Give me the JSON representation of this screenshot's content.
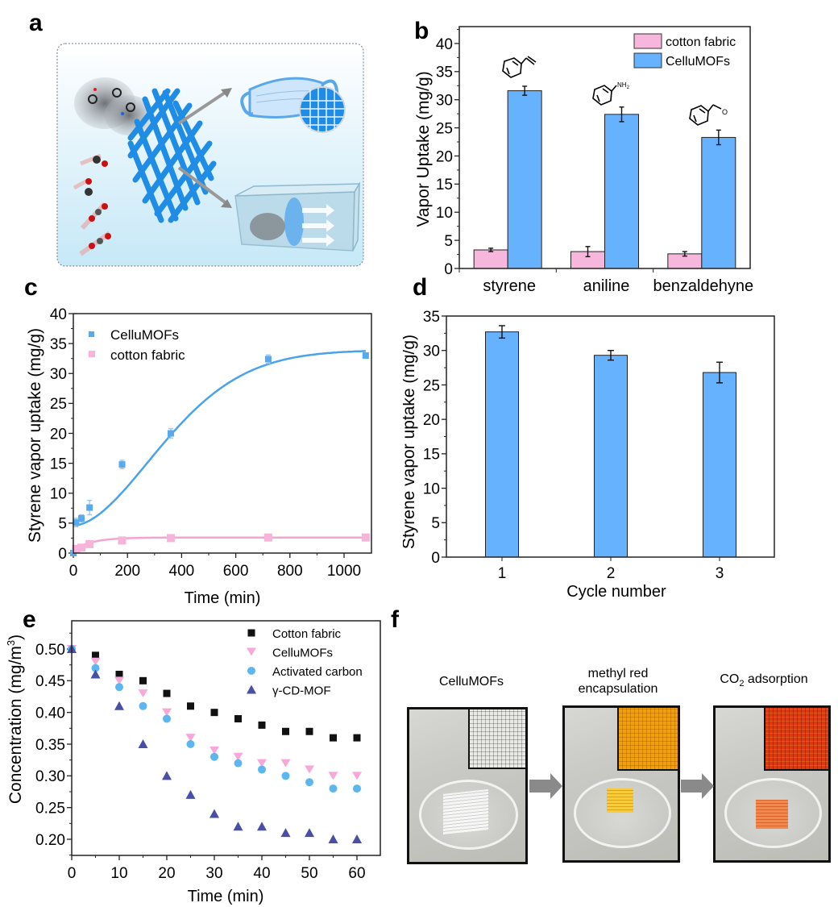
{
  "panels": {
    "a": {
      "letter": "a",
      "description": "schematic: CelluMOFs woven fabric capturing VOC and CO2 molecules, applied to face mask and air filtration box"
    },
    "b": {
      "letter": "b"
    },
    "c": {
      "letter": "c"
    },
    "d": {
      "letter": "d"
    },
    "e": {
      "letter": "e"
    },
    "f": {
      "letter": "f",
      "photos": [
        {
          "label_line1": "CelluMOFs",
          "label_line2": "",
          "color": "#f2f2f2"
        },
        {
          "label_line1": "methyl red",
          "label_line2": "encapsulation",
          "color": "#f2c230"
        },
        {
          "label_line1": "CO",
          "label_sub": "2",
          "label_rest": " adsorption",
          "color": "#e7783a"
        }
      ]
    }
  },
  "colors": {
    "pink": "#f7b6dc",
    "blue": "#66b2ff",
    "pink_line": "#f5a3d0",
    "blue_line": "#4aa3ea",
    "black": "#111111",
    "lavender_pink": "#f7a8d8",
    "light_blue": "#5db6f0",
    "indigo": "#4a4fa6"
  },
  "chart_data": [
    {
      "id": "b",
      "type": "bar",
      "title": "",
      "xlabel": "",
      "ylabel": "Vapor Uptake (mg/g)",
      "ylim": [
        0,
        43
      ],
      "yticks": [
        0,
        5,
        10,
        15,
        20,
        25,
        30,
        35,
        40
      ],
      "categories": [
        "styrene",
        "aniline",
        "benzaldehyne"
      ],
      "series": [
        {
          "name": "cotton fabric",
          "values": [
            3.3,
            3.0,
            2.6
          ],
          "errors": [
            0.3,
            0.9,
            0.4
          ]
        },
        {
          "name": "CelluMOFs",
          "values": [
            31.6,
            27.4,
            23.3
          ],
          "errors": [
            0.8,
            1.3,
            1.3
          ]
        }
      ],
      "legend": "top-right",
      "annotations": [
        "styrene structure",
        "aniline structure (NH2)",
        "benzaldehyde structure (O)"
      ],
      "annotation_text": {
        "nh2": "NH",
        "nh2_sub": "2",
        "o": "O"
      }
    },
    {
      "id": "c",
      "type": "scatter",
      "title": "",
      "xlabel": "Time (min)",
      "ylabel": "Styrene vapor uptake (mg/g)",
      "xlim": [
        0,
        1080
      ],
      "ylim": [
        0,
        40
      ],
      "xticks": [
        0,
        200,
        400,
        600,
        800,
        1000
      ],
      "yticks": [
        0,
        5,
        10,
        15,
        20,
        25,
        30,
        35,
        40
      ],
      "series": [
        {
          "name": "CelluMOFs",
          "x": [
            0,
            10,
            30,
            60,
            180,
            360,
            720,
            1080
          ],
          "y": [
            0,
            5.1,
            5.8,
            7.6,
            14.8,
            20.0,
            32.4,
            33.0
          ],
          "errors": [
            0,
            0.7,
            0.6,
            1.2,
            0.7,
            0.8,
            0.7,
            0.3
          ]
        },
        {
          "name": "cotton fabric",
          "x": [
            10,
            30,
            60,
            180,
            360,
            720,
            1080
          ],
          "y": [
            0.7,
            0.9,
            1.5,
            2.1,
            2.5,
            2.6,
            2.6
          ],
          "errors": [
            0,
            0,
            0,
            0,
            0,
            0,
            0
          ]
        }
      ],
      "fit_curves": true,
      "legend": "top-left"
    },
    {
      "id": "d",
      "type": "bar",
      "title": "",
      "xlabel": "Cycle number",
      "ylabel": "Styrene vapor uptake (mg/g)",
      "ylim": [
        0,
        35
      ],
      "yticks": [
        0,
        5,
        10,
        15,
        20,
        25,
        30,
        35
      ],
      "categories": [
        "1",
        "2",
        "3"
      ],
      "values": [
        32.7,
        29.3,
        26.8
      ],
      "errors": [
        0.9,
        0.7,
        1.5
      ]
    },
    {
      "id": "e",
      "type": "scatter",
      "title": "",
      "xlabel": "Time (min)",
      "ylabel": "Concentration (mg/m3)",
      "ylabel_main": "Concentration (mg/m",
      "ylabel_sup": "3",
      "ylabel_end": ")",
      "xlim": [
        0,
        65
      ],
      "ylim": [
        0.175,
        0.545
      ],
      "xticks": [
        0,
        10,
        20,
        30,
        40,
        50,
        60
      ],
      "yticks": [
        "0.20",
        "0.25",
        "0.30",
        "0.35",
        "0.40",
        "0.45",
        "0.50"
      ],
      "x": [
        0,
        5,
        10,
        15,
        20,
        25,
        30,
        35,
        40,
        45,
        50,
        55,
        60
      ],
      "series": [
        {
          "name": "Cotton fabric",
          "marker": "square",
          "y": [
            0.5,
            0.49,
            0.46,
            0.45,
            0.43,
            0.41,
            0.4,
            0.39,
            0.38,
            0.37,
            0.37,
            0.36,
            0.36
          ]
        },
        {
          "name": "CelluMOFs",
          "marker": "triangle-down",
          "y": [
            0.5,
            0.48,
            0.45,
            0.43,
            0.4,
            0.36,
            0.34,
            0.33,
            0.32,
            0.32,
            0.31,
            0.3,
            0.3
          ]
        },
        {
          "name": "Activated carbon",
          "marker": "circle",
          "y": [
            0.5,
            0.47,
            0.44,
            0.41,
            0.39,
            0.35,
            0.33,
            0.32,
            0.31,
            0.3,
            0.29,
            0.28,
            0.28
          ]
        },
        {
          "name": "γ-CD-MOF",
          "marker": "triangle-up",
          "y": [
            0.5,
            0.46,
            0.41,
            0.35,
            0.3,
            0.27,
            0.24,
            0.22,
            0.22,
            0.21,
            0.21,
            0.2,
            0.2
          ]
        }
      ],
      "legend": "top-right"
    }
  ]
}
